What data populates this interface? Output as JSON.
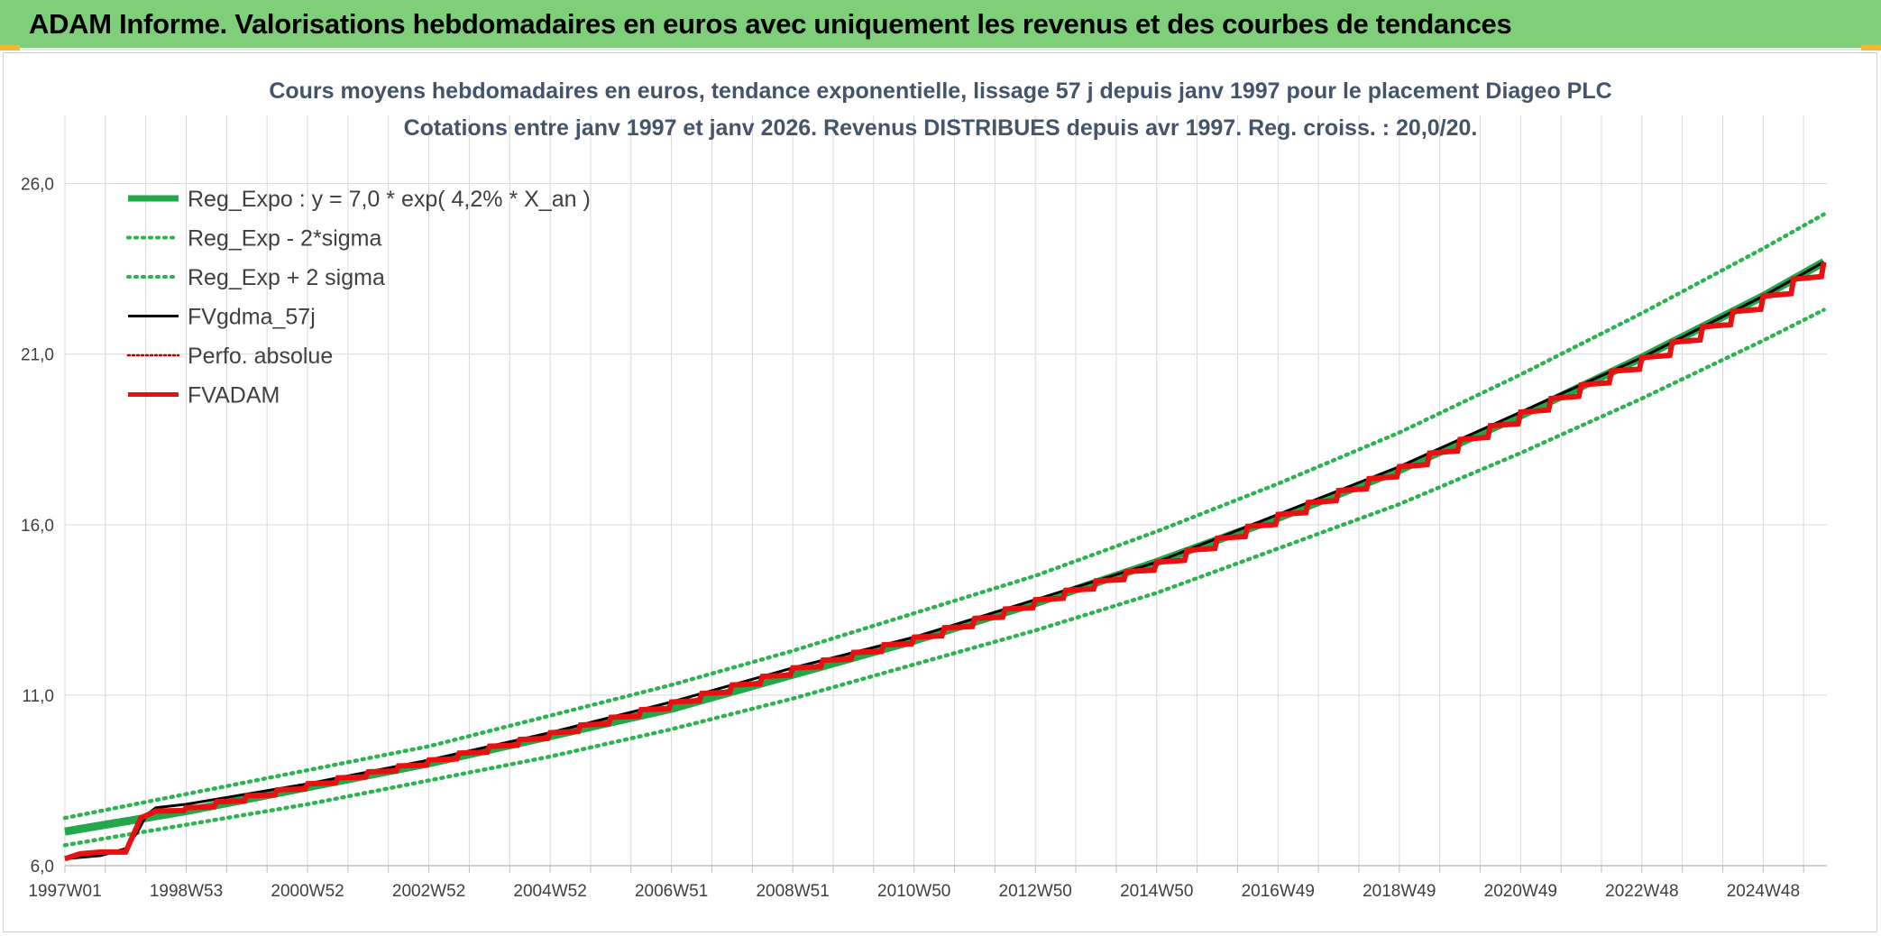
{
  "header": {
    "title": "ADAM Informe. Valorisations hebdomadaires en euros avec uniquement les revenus et des courbes de tendances"
  },
  "colors": {
    "banner": "#7fcf7a",
    "accent_corner": "#f2b830",
    "trend_green": "#22a84a",
    "band_green": "#2db34f",
    "black_line": "#000000",
    "red_line": "#e81010",
    "dotted_red": "#c00000",
    "grid": "#d9d9d9"
  },
  "chart_data": {
    "type": "line",
    "title_lines": [
      "Cours moyens hebdomadaires en euros, tendance exponentielle, lissage 57 j depuis janv 1997 pour le placement Diageo PLC",
      "Cotations entre janv 1997 et janv 2026. Revenus DISTRIBUES depuis avr 1997. Reg. croiss. : 20,0/20."
    ],
    "xlabel": "",
    "ylabel": "",
    "x_range_years": [
      1997.0,
      2026.05
    ],
    "ylim": [
      6.0,
      28.0
    ],
    "y_ticks": [
      "6,0",
      "11,0",
      "16,0",
      "21,0",
      "26,0"
    ],
    "y_tick_values": [
      6,
      11,
      16,
      21,
      26
    ],
    "x_tick_labels": [
      "1997W01",
      "1998W53",
      "2000W52",
      "2002W52",
      "2004W52",
      "2006W51",
      "2008W51",
      "2010W50",
      "2012W50",
      "2014W50",
      "2016W49",
      "2018W49",
      "2020W49",
      "2022W48",
      "2024W48"
    ],
    "x_tick_years": [
      1997.0,
      1999.0,
      2001.0,
      2003.0,
      2005.0,
      2007.0,
      2009.0,
      2011.0,
      2013.0,
      2015.0,
      2017.0,
      2019.0,
      2021.0,
      2023.0,
      2025.0
    ],
    "grid": true,
    "legend_position": "top-left",
    "series": [
      {
        "name": "Reg_Expo : y = 7,0 * exp( 4,2% *  X_an )",
        "style": "solid-thick",
        "color": "#22a84a",
        "x": [
          1997.0,
          1999.0,
          2001.0,
          2003.0,
          2005.0,
          2007.0,
          2009.0,
          2011.0,
          2013.0,
          2015.0,
          2017.0,
          2019.0,
          2021.0,
          2023.0,
          2025.0,
          2026.0
        ],
        "y": [
          7.0,
          7.6,
          8.3,
          9.0,
          9.8,
          10.6,
          11.6,
          12.6,
          13.7,
          14.9,
          16.2,
          17.6,
          19.2,
          20.9,
          22.7,
          23.7
        ]
      },
      {
        "name": "Reg_Exp - 2*sigma",
        "style": "dotted",
        "color": "#2db34f",
        "x": [
          1997.0,
          1999.0,
          2001.0,
          2003.0,
          2005.0,
          2007.0,
          2009.0,
          2011.0,
          2013.0,
          2015.0,
          2017.0,
          2019.0,
          2021.0,
          2023.0,
          2025.0,
          2026.0
        ],
        "y": [
          6.6,
          7.2,
          7.8,
          8.5,
          9.2,
          10.0,
          10.9,
          11.9,
          12.9,
          14.0,
          15.3,
          16.6,
          18.1,
          19.7,
          21.4,
          22.3
        ]
      },
      {
        "name": "Reg_Exp + 2 sigma",
        "style": "dotted",
        "color": "#2db34f",
        "x": [
          1997.0,
          1999.0,
          2001.0,
          2003.0,
          2005.0,
          2007.0,
          2009.0,
          2011.0,
          2013.0,
          2015.0,
          2017.0,
          2019.0,
          2021.0,
          2023.0,
          2025.0,
          2026.0
        ],
        "y": [
          7.4,
          8.1,
          8.8,
          9.5,
          10.4,
          11.3,
          12.3,
          13.4,
          14.5,
          15.8,
          17.2,
          18.7,
          20.4,
          22.2,
          24.1,
          25.1
        ]
      },
      {
        "name": "FVgdma_57j",
        "style": "solid",
        "color": "#000000",
        "x": [
          1997.0,
          1997.6,
          1998.0,
          1998.2,
          1998.35,
          1998.5,
          1999.0,
          2001.0,
          2003.0,
          2005.0,
          2007.0,
          2009.0,
          2011.0,
          2013.0,
          2015.0,
          2017.0,
          2019.0,
          2021.0,
          2023.0,
          2025.0,
          2026.0
        ],
        "y": [
          6.2,
          6.3,
          6.5,
          7.0,
          7.5,
          7.7,
          7.8,
          8.4,
          9.1,
          9.9,
          10.8,
          11.8,
          12.7,
          13.8,
          14.9,
          16.3,
          17.7,
          19.3,
          20.9,
          22.7,
          23.7
        ]
      },
      {
        "name": "Perfo. absolue",
        "style": "dotted",
        "color": "#c00000",
        "x": [],
        "y": []
      },
      {
        "name": "FVADAM",
        "style": "step",
        "color": "#e81010",
        "x": [
          1997.0,
          1997.25,
          1997.6,
          1998.0,
          1998.25,
          1998.5,
          1999.0,
          2001.0,
          2003.0,
          2005.0,
          2007.0,
          2009.0,
          2011.0,
          2013.0,
          2015.0,
          2017.0,
          2019.0,
          2021.0,
          2023.0,
          2025.0,
          2026.0
        ],
        "y": [
          6.2,
          6.35,
          6.4,
          6.4,
          7.4,
          7.6,
          7.7,
          8.4,
          9.1,
          9.9,
          10.8,
          11.8,
          12.7,
          13.8,
          14.9,
          16.3,
          17.7,
          19.3,
          20.9,
          22.7,
          23.7
        ]
      }
    ]
  }
}
